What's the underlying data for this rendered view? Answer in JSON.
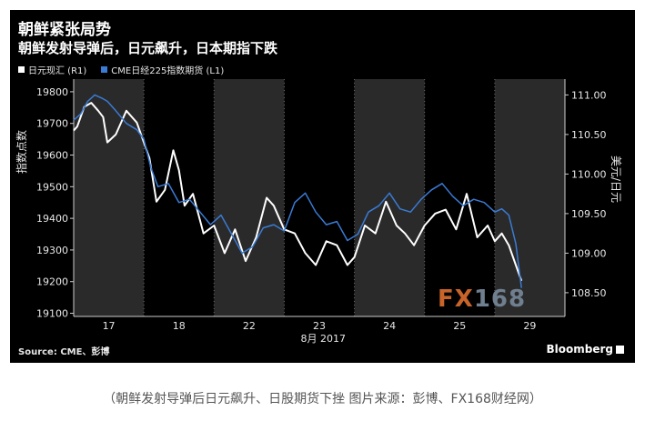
{
  "chart_data": {
    "type": "line",
    "title": "朝鲜紧张局势",
    "subtitle": "朝鲜发射导弹后，日元飙升，日本期指下跌",
    "ylabel_left": "指数点数",
    "ylabel_right": "美元/日元",
    "xlabel": "8月 2017",
    "x_ticks": [
      "17",
      "18",
      "22",
      "23",
      "24",
      "25",
      "29"
    ],
    "y_left_ticks": [
      "19800",
      "19700",
      "19600",
      "19500",
      "19400",
      "19300",
      "19200",
      "19100"
    ],
    "y_right_ticks": [
      "111.00",
      "110.50",
      "110.00",
      "109.50",
      "109.00",
      "108.50"
    ],
    "ylim_left": [
      19090,
      19840
    ],
    "ylim_right": [
      108.2,
      111.2
    ],
    "grid": "vertical-dotted",
    "legend_position": "top-left",
    "series": [
      {
        "name": "日元现汇 (R1)",
        "axis": "right",
        "color": "#ffffff",
        "x": [
          0,
          0.05,
          0.15,
          0.25,
          0.35,
          0.42,
          0.48,
          0.6,
          0.75,
          0.9,
          1.0,
          1.08,
          1.18,
          1.3,
          1.42,
          1.5,
          1.58,
          1.7,
          1.85,
          2.0,
          2.15,
          2.3,
          2.45,
          2.6,
          2.75,
          2.85,
          3.0,
          3.15,
          3.3,
          3.45,
          3.6,
          3.75,
          3.9,
          4.0,
          4.15,
          4.3,
          4.45,
          4.6,
          4.72,
          4.85,
          5.0,
          5.15,
          5.3,
          5.45,
          5.6,
          5.75,
          5.9,
          6.0,
          6.1,
          6.2,
          6.3,
          6.38
        ],
        "y": [
          110.55,
          110.6,
          110.85,
          110.9,
          110.8,
          110.72,
          110.4,
          110.5,
          110.8,
          110.65,
          110.4,
          110.2,
          109.65,
          109.8,
          110.3,
          110.05,
          109.6,
          109.75,
          109.25,
          109.35,
          109.0,
          109.3,
          108.9,
          109.2,
          109.7,
          109.6,
          109.3,
          109.25,
          109.0,
          108.85,
          109.15,
          109.1,
          108.85,
          108.95,
          109.35,
          109.25,
          109.65,
          109.35,
          109.25,
          109.1,
          109.35,
          109.5,
          109.55,
          109.3,
          109.75,
          109.2,
          109.35,
          109.15,
          109.25,
          109.1,
          108.85,
          108.65
        ]
      },
      {
        "name": "CME日经225指数期货 (L1)",
        "axis": "left",
        "color": "#3a7bd5",
        "x": [
          0,
          0.1,
          0.2,
          0.3,
          0.4,
          0.48,
          0.6,
          0.75,
          0.9,
          1.0,
          1.1,
          1.2,
          1.35,
          1.5,
          1.65,
          1.8,
          1.95,
          2.1,
          2.25,
          2.4,
          2.55,
          2.7,
          2.85,
          3.0,
          3.15,
          3.3,
          3.45,
          3.6,
          3.75,
          3.9,
          4.05,
          4.2,
          4.35,
          4.5,
          4.65,
          4.8,
          4.95,
          5.1,
          5.25,
          5.4,
          5.55,
          5.7,
          5.85,
          6.0,
          6.1,
          6.2,
          6.3,
          6.38
        ],
        "y": [
          19710,
          19730,
          19770,
          19790,
          19780,
          19770,
          19740,
          19700,
          19680,
          19650,
          19560,
          19500,
          19510,
          19450,
          19460,
          19420,
          19380,
          19410,
          19350,
          19290,
          19310,
          19370,
          19380,
          19360,
          19450,
          19480,
          19420,
          19380,
          19390,
          19330,
          19350,
          19420,
          19440,
          19480,
          19430,
          19420,
          19460,
          19490,
          19510,
          19470,
          19440,
          19460,
          19450,
          19420,
          19430,
          19410,
          19320,
          19180
        ]
      }
    ]
  },
  "source": "Source: CME、彭博",
  "brand": "Bloomberg",
  "watermark": {
    "part1": "FX",
    "part2": "168"
  },
  "caption": "（朝鲜发射导弹后日元飙升、日股期货下挫 图片来源：彭博、FX168财经网）"
}
